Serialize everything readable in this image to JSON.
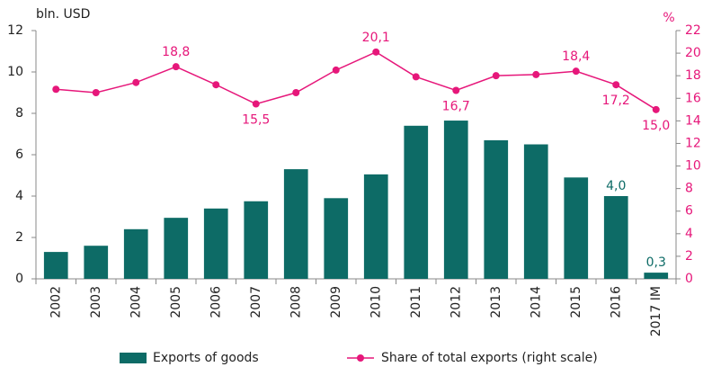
{
  "chart_data": {
    "type": "bar-line",
    "y_unit_label": "bln. USD",
    "y2_unit_label": "%",
    "categories": [
      "2002",
      "2003",
      "2004",
      "2005",
      "2006",
      "2007",
      "2008",
      "2009",
      "2010",
      "2011",
      "2012",
      "2013",
      "2014",
      "2015",
      "2016",
      "2017 IM"
    ],
    "series": [
      {
        "name": "Exports of goods",
        "type": "bar",
        "color": "#0d6b66",
        "values": [
          1.3,
          1.6,
          2.4,
          2.95,
          3.4,
          3.75,
          5.3,
          3.9,
          5.05,
          7.4,
          7.65,
          6.7,
          6.5,
          4.9,
          4.0,
          0.3
        ],
        "value_labels": [
          null,
          null,
          null,
          null,
          null,
          null,
          null,
          null,
          null,
          null,
          null,
          null,
          null,
          null,
          "4,0",
          "0,3"
        ]
      },
      {
        "name": "Share of total exports (right scale)",
        "type": "line",
        "axis": "y2",
        "color": "#e6177a",
        "values": [
          16.8,
          16.5,
          17.4,
          18.8,
          17.2,
          15.5,
          16.5,
          18.5,
          20.1,
          17.9,
          16.7,
          18.0,
          18.1,
          18.4,
          17.2,
          15.0
        ],
        "value_labels": [
          null,
          null,
          null,
          "18,8",
          null,
          "15,5",
          null,
          null,
          "20,1",
          null,
          "16,7",
          null,
          null,
          "18,4",
          "17,2",
          "15,0"
        ]
      }
    ],
    "ylim": [
      0,
      12
    ],
    "yticks": [
      0,
      2,
      4,
      6,
      8,
      10,
      12
    ],
    "y2lim": [
      0,
      22
    ],
    "y2ticks": [
      0,
      2,
      4,
      6,
      8,
      10,
      12,
      14,
      16,
      18,
      20,
      22
    ]
  }
}
